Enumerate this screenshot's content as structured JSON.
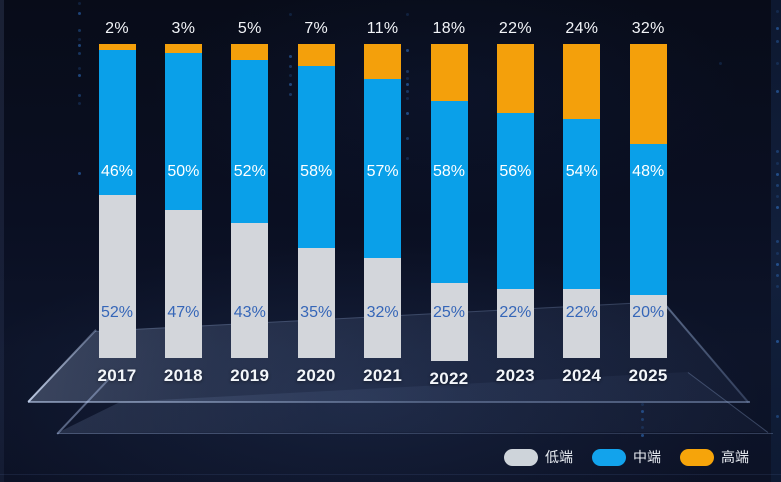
{
  "chart_data": {
    "type": "bar",
    "variant": "stacked-100",
    "title": "",
    "unit": "%",
    "categories": [
      "2017",
      "2018",
      "2019",
      "2020",
      "2021",
      "2022",
      "2023",
      "2024",
      "2025"
    ],
    "series": [
      {
        "name": "低端",
        "color": "#D3D6DB",
        "label_color": "#3566B8",
        "values": [
          52,
          47,
          43,
          35,
          32,
          25,
          22,
          22,
          20
        ]
      },
      {
        "name": "中端",
        "color": "#0AA0E9",
        "label_color": "#FFFFFF",
        "values": [
          46,
          50,
          52,
          58,
          57,
          58,
          56,
          54,
          48
        ]
      },
      {
        "name": "高端",
        "color": "#F4A00B",
        "label_color": "#F2F4F8",
        "values": [
          2,
          3,
          5,
          7,
          11,
          18,
          22,
          24,
          32
        ]
      }
    ],
    "value_label_format": "{value}%",
    "ylim": [
      0,
      100
    ],
    "grid": false,
    "legend_position": "bottom-right"
  },
  "legend": {
    "items": [
      {
        "label": "低端",
        "color": "#CED4DA"
      },
      {
        "label": "中端",
        "color": "#12A3EC"
      },
      {
        "label": "高端",
        "color": "#F6A40A"
      }
    ]
  },
  "theme": {
    "background_top": "#080C19",
    "background_bottom": "#0C1226",
    "platform_tint": "#8FA7D0",
    "category_label_color": "#F3F6FA",
    "top_value_label_color": "#F2F4F8",
    "decor_dot_color": "#2E6AB8"
  }
}
